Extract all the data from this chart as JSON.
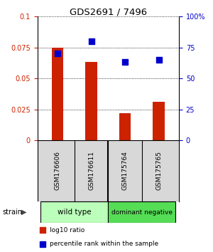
{
  "title": "GDS2691 / 7496",
  "samples": [
    "GSM176606",
    "GSM176611",
    "GSM175764",
    "GSM175765"
  ],
  "bar_values": [
    0.075,
    0.063,
    0.022,
    0.031
  ],
  "scatter_values": [
    70,
    80,
    63,
    65
  ],
  "bar_color": "#cc2200",
  "scatter_color": "#0000cc",
  "ylim_left": [
    0,
    0.1
  ],
  "ylim_right": [
    0,
    100
  ],
  "yticks_left": [
    0,
    0.025,
    0.05,
    0.075,
    0.1
  ],
  "ytick_labels_left": [
    "0",
    "0.025",
    "0.05",
    "0.075",
    "0.1"
  ],
  "yticks_right": [
    0,
    25,
    50,
    75,
    100
  ],
  "ytick_labels_right": [
    "0",
    "25",
    "50",
    "75",
    "100%"
  ],
  "groups": [
    {
      "label": "wild type",
      "indices": [
        0,
        1
      ],
      "color": "#bbffbb"
    },
    {
      "label": "dominant negative",
      "indices": [
        2,
        3
      ],
      "color": "#55dd55"
    }
  ],
  "strain_label": "strain",
  "legend_bar_label": "log10 ratio",
  "legend_scatter_label": "percentile rank within the sample",
  "sample_bg": "#d8d8d8",
  "plot_bg": "#ffffff"
}
